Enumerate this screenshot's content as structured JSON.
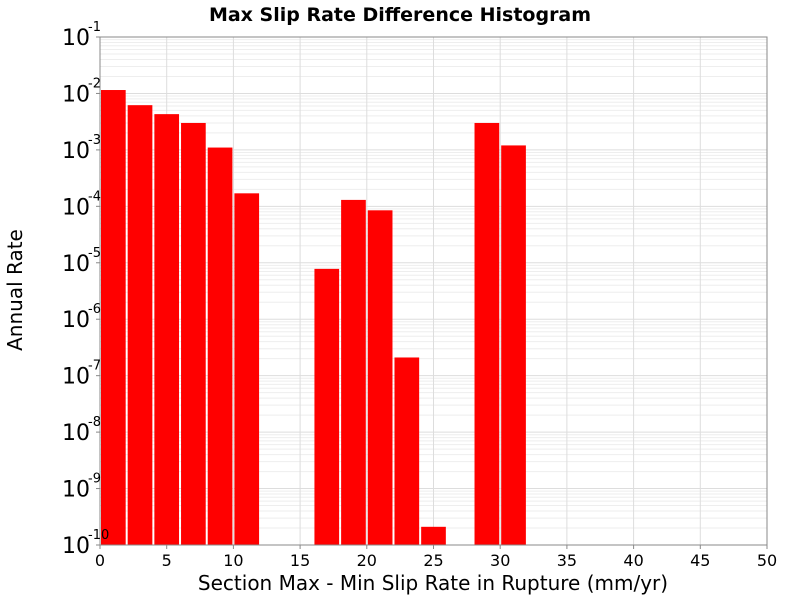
{
  "chart_data": {
    "type": "bar",
    "title": "Max Slip Rate Difference Histogram",
    "xlabel": "Section Max - Min Slip Rate in Rupture (mm/yr)",
    "ylabel": "Annual Rate",
    "xlim": [
      0,
      50
    ],
    "ylim": [
      1e-10,
      0.1
    ],
    "yscale": "log",
    "grid": true,
    "bar_color": "#ff0000",
    "bin_width": 2,
    "xticks": [
      {
        "value": 0,
        "label": "0"
      },
      {
        "value": 5,
        "label": "5"
      },
      {
        "value": 10,
        "label": "10"
      },
      {
        "value": 15,
        "label": "15"
      },
      {
        "value": 20,
        "label": "20"
      },
      {
        "value": 25,
        "label": "25"
      },
      {
        "value": 30,
        "label": "30"
      },
      {
        "value": 35,
        "label": "35"
      },
      {
        "value": 40,
        "label": "40"
      },
      {
        "value": 45,
        "label": "45"
      },
      {
        "value": 50,
        "label": "50"
      }
    ],
    "yticks": [
      {
        "exp": -10,
        "base": "10",
        "sup": "-10"
      },
      {
        "exp": -9,
        "base": "10",
        "sup": "-9"
      },
      {
        "exp": -8,
        "base": "10",
        "sup": "-8"
      },
      {
        "exp": -7,
        "base": "10",
        "sup": "-7"
      },
      {
        "exp": -6,
        "base": "10",
        "sup": "-6"
      },
      {
        "exp": -5,
        "base": "10",
        "sup": "-5"
      },
      {
        "exp": -4,
        "base": "10",
        "sup": "-4"
      },
      {
        "exp": -3,
        "base": "10",
        "sup": "-3"
      },
      {
        "exp": -2,
        "base": "10",
        "sup": "-2"
      },
      {
        "exp": -1,
        "base": "10",
        "sup": "-1"
      }
    ],
    "bars": [
      {
        "x": 1,
        "value": 0.0115
      },
      {
        "x": 3,
        "value": 0.0062
      },
      {
        "x": 5,
        "value": 0.0043
      },
      {
        "x": 7,
        "value": 0.003
      },
      {
        "x": 9,
        "value": 0.0011
      },
      {
        "x": 11,
        "value": 0.00017
      },
      {
        "x": 17,
        "value": 7.8e-06
      },
      {
        "x": 19,
        "value": 0.00013
      },
      {
        "x": 21,
        "value": 8.5e-05
      },
      {
        "x": 23,
        "value": 2.1e-07
      },
      {
        "x": 25,
        "value": 2.1e-10
      },
      {
        "x": 29,
        "value": 0.003
      },
      {
        "x": 31,
        "value": 0.0012
      }
    ]
  }
}
